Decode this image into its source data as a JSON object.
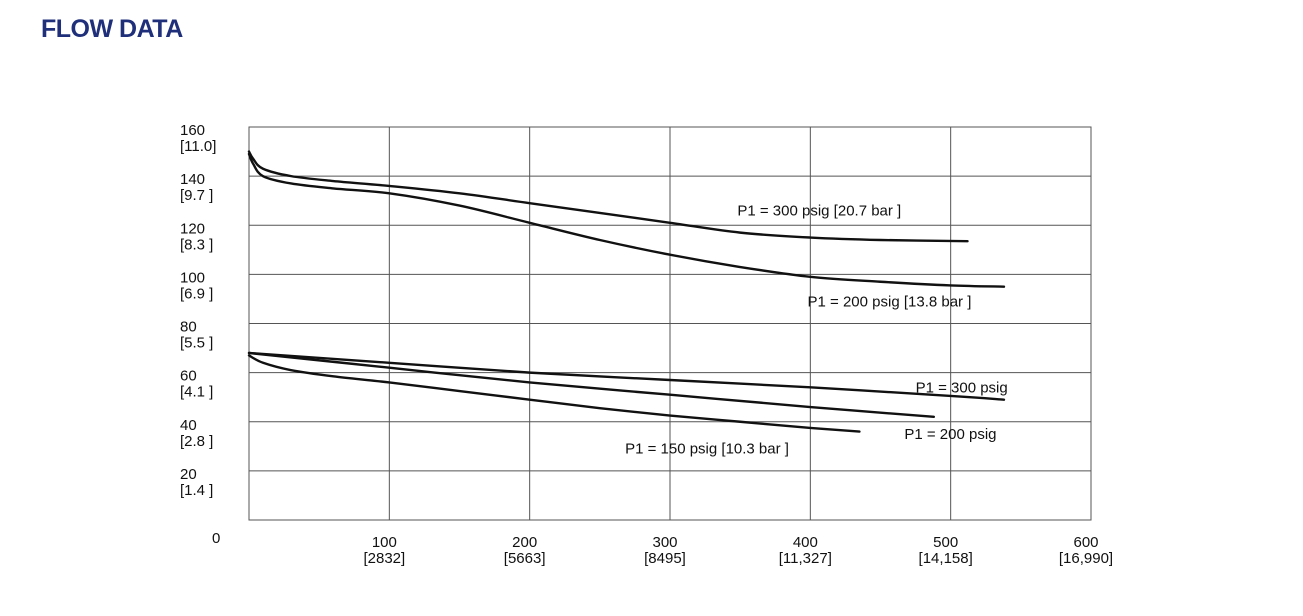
{
  "header": {
    "title": "FLOW DATA"
  },
  "colors": {
    "title": "#1f2f7a",
    "line": "#111111",
    "grid": "#555555"
  },
  "chart_data": {
    "type": "line",
    "title": "",
    "xlabel": "",
    "ylabel": "",
    "xlim": [
      0,
      600
    ],
    "ylim": [
      0,
      160
    ],
    "grid": true,
    "legend": "none",
    "x_ticks": [
      {
        "value": 100,
        "label": "100",
        "sub": "[2832]"
      },
      {
        "value": 200,
        "label": "200",
        "sub": "[5663]"
      },
      {
        "value": 300,
        "label": "300",
        "sub": "[8495]"
      },
      {
        "value": 400,
        "label": "400",
        "sub": "[11,327]"
      },
      {
        "value": 500,
        "label": "500",
        "sub": "[14,158]"
      },
      {
        "value": 600,
        "label": "600",
        "sub": "[16,990]"
      }
    ],
    "y_ticks": [
      {
        "value": 20,
        "label": "20",
        "sub": "[1.4 ]"
      },
      {
        "value": 40,
        "label": "40",
        "sub": "[2.8 ]"
      },
      {
        "value": 60,
        "label": "60",
        "sub": "[4.1 ]"
      },
      {
        "value": 80,
        "label": "80",
        "sub": "[5.5 ]"
      },
      {
        "value": 100,
        "label": "100",
        "sub": "[6.9 ]"
      },
      {
        "value": 120,
        "label": "120",
        "sub": "[8.3 ]"
      },
      {
        "value": 140,
        "label": "140",
        "sub": "[9.7 ]"
      },
      {
        "value": 160,
        "label": "160",
        "sub": "[11.0]"
      }
    ],
    "origin_label": "0",
    "series": [
      {
        "name": "P1 = 300 psig [20.7 bar ]",
        "label_at": [
          348,
          124
        ],
        "x": [
          0,
          3,
          10,
          30,
          60,
          100,
          150,
          200,
          250,
          300,
          350,
          400,
          450,
          512
        ],
        "y": [
          150,
          147,
          143,
          140,
          138,
          136,
          133,
          129,
          125,
          121,
          117,
          115,
          114,
          113.5
        ]
      },
      {
        "name": "P1 = 200 psig [13.8 bar ]",
        "label_at": [
          398,
          87
        ],
        "x": [
          0,
          3,
          10,
          30,
          60,
          100,
          150,
          200,
          250,
          300,
          350,
          400,
          450,
          500,
          538
        ],
        "y": [
          149,
          145,
          140,
          137,
          135,
          133,
          128,
          121,
          114,
          108,
          103,
          99,
          97,
          95.5,
          95
        ]
      },
      {
        "name": "P1 = 300 psig",
        "label_at": [
          475,
          52
        ],
        "x": [
          0,
          100,
          200,
          300,
          400,
          500,
          538
        ],
        "y": [
          68,
          64,
          60,
          57,
          54,
          50.5,
          49
        ]
      },
      {
        "name": "P1 = 200 psig",
        "label_at": [
          467,
          33
        ],
        "x": [
          0,
          100,
          200,
          300,
          400,
          488
        ],
        "y": [
          68,
          62,
          56,
          51,
          46,
          42
        ]
      },
      {
        "name": "P1 = 150 psig [10.3 bar ]",
        "label_at": [
          268,
          27
        ],
        "x": [
          0,
          10,
          30,
          60,
          100,
          150,
          200,
          250,
          300,
          350,
          400,
          435
        ],
        "y": [
          67,
          64,
          61,
          58.5,
          56,
          52.5,
          49,
          45.5,
          42.5,
          40,
          37.5,
          36
        ]
      }
    ]
  }
}
